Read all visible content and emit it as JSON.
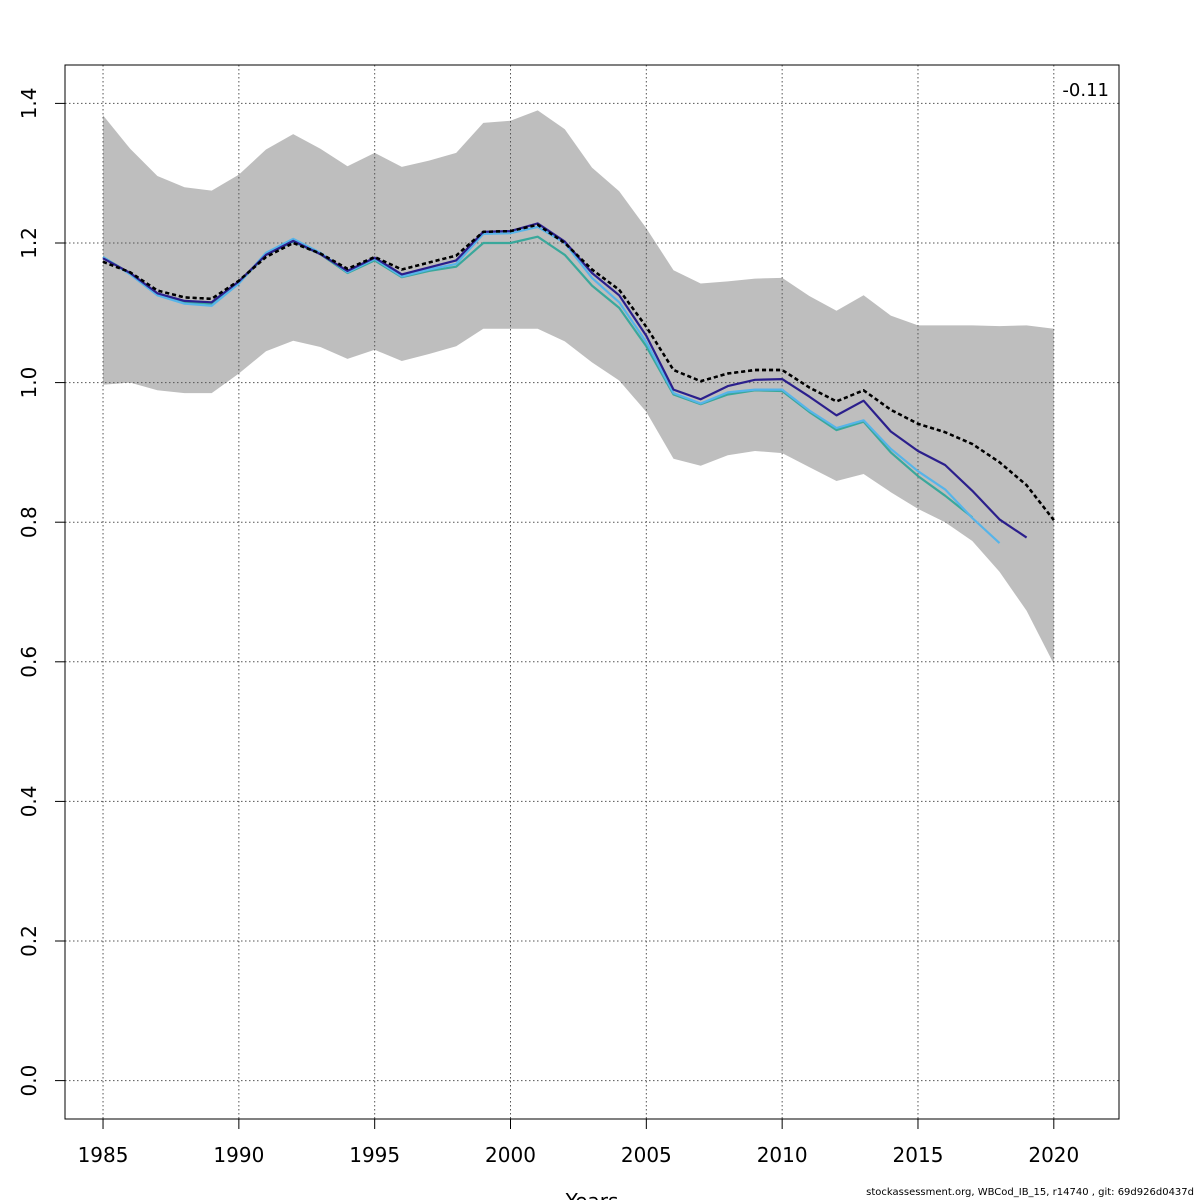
{
  "chart_data": {
    "type": "line",
    "title": "",
    "xlabel": "Years",
    "ylabel": "",
    "annotation": "-0.11",
    "xlim": [
      1983.6,
      2022.4
    ],
    "ylim": [
      -0.055,
      1.455
    ],
    "xticks": [
      1985,
      1990,
      1995,
      2000,
      2005,
      2010,
      2015,
      2020
    ],
    "yticks": [
      0.0,
      0.2,
      0.4,
      0.6,
      0.8,
      1.0,
      1.2,
      1.4
    ],
    "ytick_labels": [
      "0.0",
      "0.2",
      "0.4",
      "0.6",
      "0.8",
      "1.0",
      "1.2",
      "1.4"
    ],
    "grid": true,
    "legend": "none",
    "band": {
      "color": "#bebebe",
      "x": [
        1985,
        1986,
        1987,
        1988,
        1989,
        1990,
        1991,
        1992,
        1993,
        1994,
        1995,
        1996,
        1997,
        1998,
        1999,
        2000,
        2001,
        2002,
        2003,
        2004,
        2005,
        2006,
        2007,
        2008,
        2009,
        2010,
        2011,
        2012,
        2013,
        2014,
        2015,
        2016,
        2017,
        2018,
        2019,
        2020
      ],
      "upper": [
        1.383,
        1.335,
        1.296,
        1.28,
        1.275,
        1.298,
        1.334,
        1.356,
        1.335,
        1.31,
        1.329,
        1.309,
        1.318,
        1.329,
        1.372,
        1.375,
        1.39,
        1.363,
        1.308,
        1.274,
        1.221,
        1.161,
        1.142,
        1.145,
        1.149,
        1.15,
        1.124,
        1.103,
        1.125,
        1.096,
        1.082,
        1.082,
        1.082,
        1.081,
        1.082,
        1.077
      ],
      "lower": [
        0.997,
        1.0,
        0.989,
        0.985,
        0.985,
        1.013,
        1.045,
        1.06,
        1.051,
        1.034,
        1.047,
        1.031,
        1.041,
        1.052,
        1.077,
        1.077,
        1.077,
        1.059,
        1.029,
        1.003,
        0.958,
        0.891,
        0.881,
        0.896,
        0.902,
        0.899,
        0.879,
        0.859,
        0.869,
        0.843,
        0.819,
        0.8,
        0.773,
        0.729,
        0.673,
        0.597
      ]
    },
    "series": [
      {
        "color": "#000000",
        "dashed": true,
        "x": [
          1985,
          1986,
          1987,
          1988,
          1989,
          1990,
          1991,
          1992,
          1993,
          1994,
          1995,
          1996,
          1997,
          1998,
          1999,
          2000,
          2001,
          2002,
          2003,
          2004,
          2005,
          2006,
          2007,
          2008,
          2009,
          2010,
          2011,
          2012,
          2013,
          2014,
          2015,
          2016,
          2017,
          2018,
          2019,
          2020
        ],
        "values": [
          1.173,
          1.158,
          1.132,
          1.122,
          1.12,
          1.146,
          1.18,
          1.2,
          1.185,
          1.163,
          1.18,
          1.162,
          1.172,
          1.182,
          1.216,
          1.217,
          1.226,
          1.2,
          1.162,
          1.133,
          1.08,
          1.018,
          1.002,
          1.013,
          1.018,
          1.018,
          0.993,
          0.973,
          0.989,
          0.961,
          0.941,
          0.929,
          0.912,
          0.886,
          0.853,
          0.803
        ]
      },
      {
        "color": "#2b1f8c",
        "dashed": false,
        "x": [
          1985,
          1986,
          1987,
          1988,
          1989,
          1990,
          1991,
          1992,
          1993,
          1994,
          1995,
          1996,
          1997,
          1998,
          1999,
          2000,
          2001,
          2002,
          2003,
          2004,
          2005,
          2006,
          2007,
          2008,
          2009,
          2010,
          2011,
          2012,
          2013,
          2014,
          2015,
          2016,
          2017,
          2018,
          2019
        ],
        "values": [
          1.178,
          1.157,
          1.128,
          1.117,
          1.115,
          1.145,
          1.183,
          1.203,
          1.184,
          1.16,
          1.179,
          1.155,
          1.165,
          1.175,
          1.216,
          1.217,
          1.228,
          1.202,
          1.157,
          1.125,
          1.067,
          0.99,
          0.976,
          0.995,
          1.004,
          1.005,
          0.98,
          0.953,
          0.974,
          0.93,
          0.902,
          0.882,
          0.845,
          0.804,
          0.778
        ]
      },
      {
        "color": "#56b4e9",
        "dashed": false,
        "x": [
          1985,
          1986,
          1987,
          1988,
          1989,
          1990,
          1991,
          1992,
          1993,
          1994,
          1995,
          1996,
          1997,
          1998,
          1999,
          2000,
          2001,
          2002,
          2003,
          2004,
          2005,
          2006,
          2007,
          2008,
          2009,
          2010,
          2011,
          2012,
          2013,
          2014,
          2015,
          2016,
          2017,
          2018
        ],
        "values": [
          1.18,
          1.155,
          1.125,
          1.113,
          1.11,
          1.142,
          1.186,
          1.206,
          1.186,
          1.158,
          1.177,
          1.152,
          1.162,
          1.17,
          1.213,
          1.214,
          1.223,
          1.2,
          1.15,
          1.115,
          1.058,
          0.985,
          0.97,
          0.986,
          0.99,
          0.99,
          0.96,
          0.935,
          0.946,
          0.905,
          0.873,
          0.847,
          0.806,
          0.77
        ]
      },
      {
        "color": "#3aa89b",
        "dashed": false,
        "x": [
          1985,
          1986,
          1987,
          1988,
          1989,
          1990,
          1991,
          1992,
          1993,
          1994,
          1995,
          1996,
          1997,
          1998,
          1999,
          2000,
          2001,
          2002,
          2003,
          2004,
          2005,
          2006,
          2007,
          2008,
          2009,
          2010,
          2011,
          2012,
          2013,
          2014,
          2015,
          2016,
          2017
        ],
        "values": [
          1.18,
          1.156,
          1.127,
          1.115,
          1.113,
          1.143,
          1.183,
          1.202,
          1.184,
          1.157,
          1.175,
          1.151,
          1.16,
          1.166,
          1.2,
          1.2,
          1.209,
          1.183,
          1.139,
          1.107,
          1.052,
          0.983,
          0.969,
          0.983,
          0.989,
          0.988,
          0.958,
          0.932,
          0.944,
          0.9,
          0.866,
          0.838,
          0.807
        ]
      }
    ]
  },
  "footer": "stockassessment.org, WBCod_IB_15, r14740 , git: 69d926d0437d"
}
